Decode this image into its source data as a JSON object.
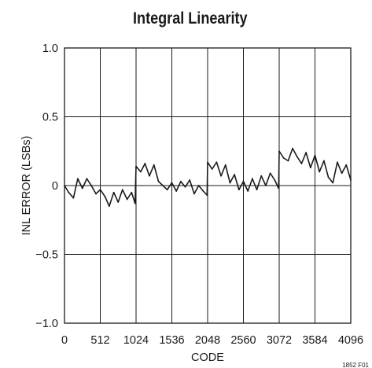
{
  "figure_id": "1852 F01",
  "chart_data": {
    "type": "line",
    "title": "Integral Linearity",
    "xlabel": "CODE",
    "ylabel": "INL ERROR (LSBs)",
    "xlim": [
      0,
      4096
    ],
    "ylim": [
      -1.0,
      1.0
    ],
    "x_ticks": [
      0,
      512,
      1024,
      1536,
      2048,
      2560,
      3072,
      3584,
      4096
    ],
    "x_tick_labels": [
      "0",
      "512",
      "1024",
      "1536",
      "2048",
      "2560",
      "3072",
      "3584",
      "4096"
    ],
    "y_ticks": [
      -1.0,
      -0.5,
      0,
      0.5,
      1.0
    ],
    "y_tick_labels": [
      "−1.0",
      "−0.5",
      "0",
      "0.5",
      "1.0"
    ],
    "grid": true,
    "legend": "none",
    "line_color": "#1a1a1a",
    "series": [
      {
        "x": [
          0,
          60,
          128,
          190,
          256,
          320,
          384,
          450,
          512,
          580,
          640,
          705,
          768,
          830,
          896,
          960,
          1010,
          1024,
          1090,
          1152,
          1215,
          1280,
          1345,
          1408,
          1470,
          1536,
          1600,
          1664,
          1728,
          1792,
          1856,
          1920,
          1985,
          2040,
          2048,
          2112,
          2176,
          2240,
          2304,
          2368,
          2432,
          2496,
          2560,
          2624,
          2688,
          2752,
          2816,
          2880,
          2944,
          3008,
          3064,
          3072,
          3136,
          3200,
          3264,
          3328,
          3392,
          3456,
          3520,
          3584,
          3648,
          3712,
          3776,
          3840,
          3904,
          3968,
          4032,
          4096
        ],
        "y": [
          0.0,
          -0.05,
          -0.09,
          0.05,
          -0.02,
          0.05,
          0.0,
          -0.06,
          -0.03,
          -0.08,
          -0.15,
          -0.05,
          -0.12,
          -0.03,
          -0.1,
          -0.05,
          -0.13,
          0.14,
          0.1,
          0.16,
          0.07,
          0.15,
          0.03,
          0.0,
          -0.03,
          0.02,
          -0.04,
          0.03,
          -0.01,
          0.04,
          -0.06,
          0.0,
          -0.04,
          -0.07,
          0.17,
          0.12,
          0.17,
          0.07,
          0.15,
          0.02,
          0.08,
          -0.03,
          0.03,
          -0.04,
          0.05,
          -0.03,
          0.07,
          0.0,
          0.09,
          0.04,
          -0.02,
          0.25,
          0.2,
          0.18,
          0.27,
          0.21,
          0.16,
          0.24,
          0.13,
          0.22,
          0.1,
          0.18,
          0.06,
          0.02,
          0.17,
          0.09,
          0.15,
          0.04
        ]
      }
    ]
  }
}
